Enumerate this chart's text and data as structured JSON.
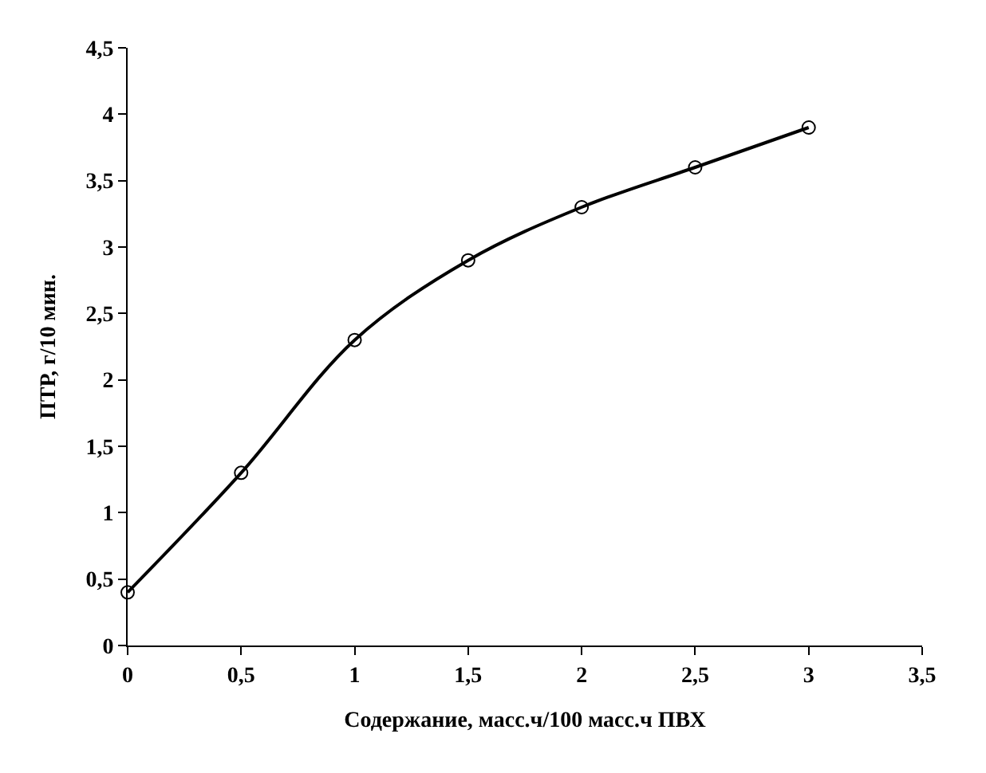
{
  "chart_data": {
    "type": "line",
    "xlabel": "Содержание, масс.ч/100 масс.ч ПВХ",
    "ylabel": "ПТР, г/10 мин.",
    "x": [
      0,
      0.5,
      1,
      1.5,
      2,
      2.5,
      3
    ],
    "series": [
      {
        "color": "#000000",
        "values": [
          0.4,
          1.3,
          2.3,
          2.9,
          3.3,
          3.6,
          3.9
        ]
      }
    ],
    "xlim": [
      0,
      3.5
    ],
    "xticks": [
      0,
      {
        "value": 0.5,
        "label": "0,5"
      },
      1,
      {
        "value": 1.5,
        "label": "1,5"
      },
      2,
      {
        "value": 2.5,
        "label": "2,5"
      },
      3,
      {
        "value": 3.5,
        "label": "3,5"
      }
    ],
    "ylim": [
      0,
      4.5
    ],
    "yticks": [
      0,
      {
        "value": 0.5,
        "label": "0,5"
      },
      1,
      {
        "value": 1.5,
        "label": "1,5"
      },
      2,
      {
        "value": 2.5,
        "label": "2,5"
      },
      3,
      {
        "value": 3.5,
        "label": "3,5"
      },
      4,
      {
        "value": 4.5,
        "label": "4,5"
      }
    ],
    "marker": "circle",
    "line_style": "solid",
    "legend": false
  }
}
